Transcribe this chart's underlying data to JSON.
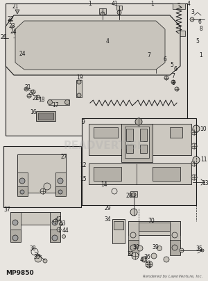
{
  "bg_color": "#e8e5e0",
  "line_color": "#1a1a1a",
  "fig_width": 3.0,
  "fig_height": 4.04,
  "dpi": 100,
  "title_text": "MP9850",
  "watermark_text": "READVERTISE",
  "footer_text": "Rendered by LawnVenture, Inc.",
  "gray_light": "#c8c4bc",
  "gray_mid": "#b0aca4",
  "gray_dark": "#888480",
  "white_ish": "#dedad4",
  "font_size": 5.5,
  "font_size_label": 6
}
